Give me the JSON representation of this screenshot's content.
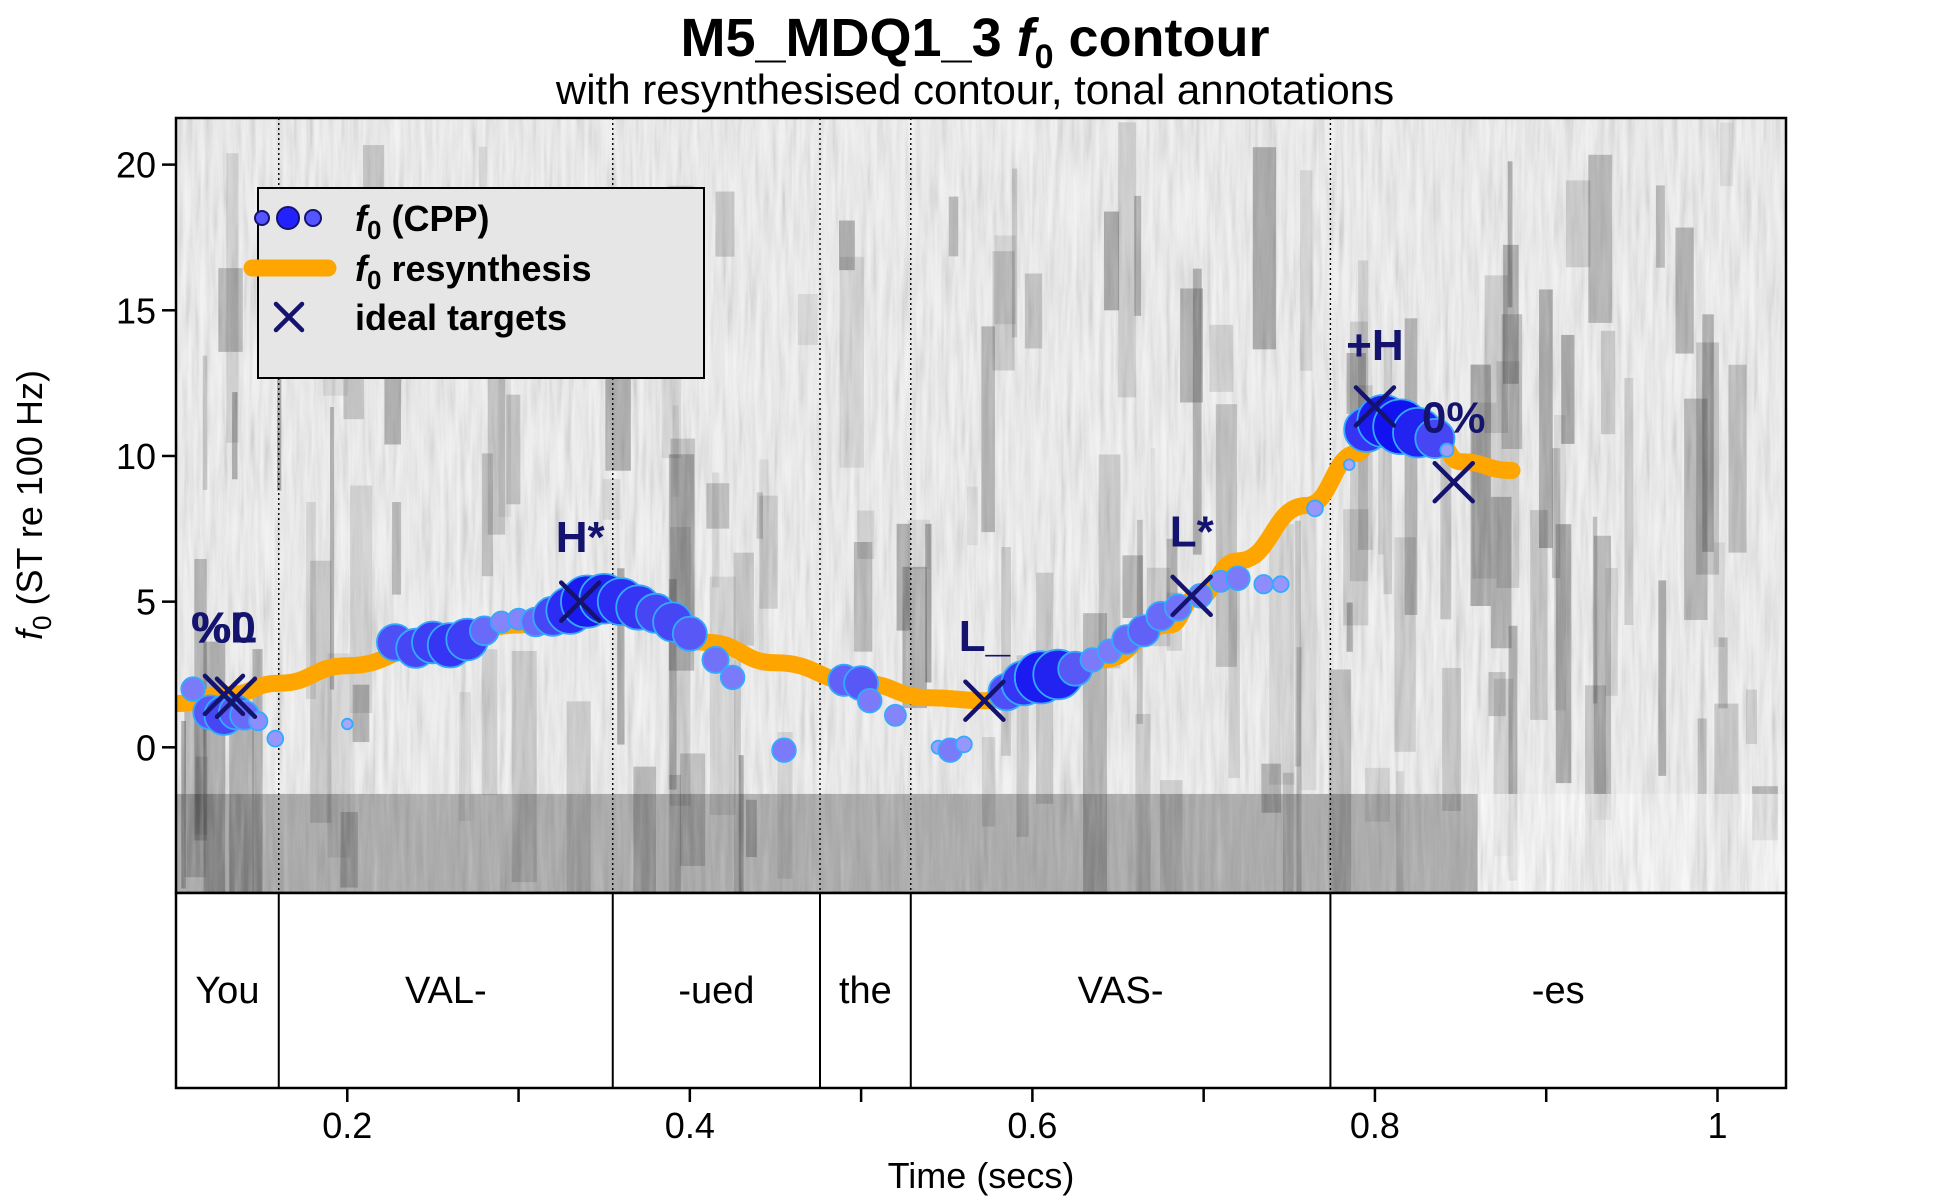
{
  "chart_data": {
    "type": "scatter",
    "title_main": "M5_MDQ1_3 ",
    "title_f": "f",
    "title_sub0": "0",
    "title_rest": " contour",
    "subtitle": "with resynthesised contour, tonal annotations",
    "xlabel": "Time (secs)",
    "ylabel_f": "f",
    "ylabel_sub": "0",
    "ylabel_rest": " (ST re 100 Hz)",
    "xlim": [
      0.1,
      1.04
    ],
    "ylim": [
      -5,
      21.6
    ],
    "xticks": [
      {
        "value": 0.2,
        "label": "0.2"
      },
      {
        "value": 0.3,
        "label": ""
      },
      {
        "value": 0.4,
        "label": "0.4"
      },
      {
        "value": 0.5,
        "label": ""
      },
      {
        "value": 0.6,
        "label": "0.6"
      },
      {
        "value": 0.7,
        "label": ""
      },
      {
        "value": 0.8,
        "label": "0.8"
      },
      {
        "value": 0.9,
        "label": ""
      },
      {
        "value": 1.0,
        "label": "1"
      }
    ],
    "yticks": [
      {
        "value": 0,
        "label": "0"
      },
      {
        "value": 5,
        "label": "5"
      },
      {
        "value": 10,
        "label": "10"
      },
      {
        "value": 15,
        "label": "15"
      },
      {
        "value": 20,
        "label": "20"
      }
    ],
    "legend": {
      "position": "top-left",
      "items": [
        {
          "kind": "points",
          "prefix": "f",
          "sub": "0",
          "suffix": " (CPP)"
        },
        {
          "kind": "line",
          "prefix": "f",
          "sub": "0",
          "suffix": " resynthesis"
        },
        {
          "kind": "cross",
          "prefix": "",
          "sub": "",
          "suffix": "ideal targets"
        }
      ]
    },
    "word_boundaries": [
      0.16,
      0.355,
      0.476,
      0.529,
      0.774
    ],
    "words": [
      {
        "label": "You",
        "start": 0.1,
        "end": 0.16
      },
      {
        "label": "VAL-",
        "start": 0.16,
        "end": 0.355
      },
      {
        "label": "-ued",
        "start": 0.355,
        "end": 0.476
      },
      {
        "label": "the",
        "start": 0.476,
        "end": 0.529
      },
      {
        "label": "VAS-",
        "start": 0.529,
        "end": 0.774
      },
      {
        "label": "-es",
        "start": 0.774,
        "end": 1.04
      }
    ],
    "resynthesis": [
      [
        0.1,
        1.5
      ],
      [
        0.13,
        1.8
      ],
      [
        0.16,
        2.2
      ],
      [
        0.2,
        2.8
      ],
      [
        0.25,
        3.5
      ],
      [
        0.3,
        4.2
      ],
      [
        0.337,
        4.9
      ],
      [
        0.37,
        4.4
      ],
      [
        0.41,
        3.6
      ],
      [
        0.45,
        2.9
      ],
      [
        0.5,
        2.2
      ],
      [
        0.54,
        1.7
      ],
      [
        0.572,
        1.6
      ],
      [
        0.6,
        2.1
      ],
      [
        0.64,
        3.0
      ],
      [
        0.68,
        4.2
      ],
      [
        0.695,
        5.1
      ],
      [
        0.72,
        6.4
      ],
      [
        0.76,
        8.3
      ],
      [
        0.79,
        10.1
      ],
      [
        0.8,
        11.0
      ],
      [
        0.82,
        11.3
      ],
      [
        0.835,
        10.6
      ],
      [
        0.85,
        9.8
      ],
      [
        0.88,
        9.5
      ]
    ],
    "cpp_points": [
      {
        "x": 0.11,
        "y": 2.0,
        "cpp": 0.3
      },
      {
        "x": 0.12,
        "y": 1.2,
        "cpp": 0.5
      },
      {
        "x": 0.128,
        "y": 1.1,
        "cpp": 0.6
      },
      {
        "x": 0.135,
        "y": 1.2,
        "cpp": 0.5
      },
      {
        "x": 0.14,
        "y": 1.1,
        "cpp": 0.4
      },
      {
        "x": 0.148,
        "y": 0.9,
        "cpp": 0.2
      },
      {
        "x": 0.158,
        "y": 0.3,
        "cpp": 0.15
      },
      {
        "x": 0.2,
        "y": 0.8,
        "cpp": 0.05
      },
      {
        "x": 0.228,
        "y": 3.6,
        "cpp": 0.55
      },
      {
        "x": 0.24,
        "y": 3.4,
        "cpp": 0.6
      },
      {
        "x": 0.25,
        "y": 3.6,
        "cpp": 0.65
      },
      {
        "x": 0.26,
        "y": 3.5,
        "cpp": 0.7
      },
      {
        "x": 0.27,
        "y": 3.7,
        "cpp": 0.65
      },
      {
        "x": 0.28,
        "y": 4.0,
        "cpp": 0.4
      },
      {
        "x": 0.29,
        "y": 4.3,
        "cpp": 0.25
      },
      {
        "x": 0.3,
        "y": 4.4,
        "cpp": 0.25
      },
      {
        "x": 0.31,
        "y": 4.3,
        "cpp": 0.4
      },
      {
        "x": 0.32,
        "y": 4.5,
        "cpp": 0.6
      },
      {
        "x": 0.33,
        "y": 4.7,
        "cpp": 0.75
      },
      {
        "x": 0.34,
        "y": 5.0,
        "cpp": 0.85
      },
      {
        "x": 0.35,
        "y": 5.1,
        "cpp": 0.8
      },
      {
        "x": 0.36,
        "y": 5.0,
        "cpp": 0.75
      },
      {
        "x": 0.37,
        "y": 4.8,
        "cpp": 0.7
      },
      {
        "x": 0.38,
        "y": 4.6,
        "cpp": 0.6
      },
      {
        "x": 0.39,
        "y": 4.3,
        "cpp": 0.6
      },
      {
        "x": 0.4,
        "y": 3.9,
        "cpp": 0.5
      },
      {
        "x": 0.415,
        "y": 3.0,
        "cpp": 0.35
      },
      {
        "x": 0.425,
        "y": 2.4,
        "cpp": 0.3
      },
      {
        "x": 0.455,
        "y": -0.1,
        "cpp": 0.3
      },
      {
        "x": 0.49,
        "y": 2.3,
        "cpp": 0.45
      },
      {
        "x": 0.5,
        "y": 2.2,
        "cpp": 0.5
      },
      {
        "x": 0.505,
        "y": 1.6,
        "cpp": 0.3
      },
      {
        "x": 0.52,
        "y": 1.1,
        "cpp": 0.25
      },
      {
        "x": 0.545,
        "y": 0.0,
        "cpp": 0.1
      },
      {
        "x": 0.552,
        "y": -0.1,
        "cpp": 0.3
      },
      {
        "x": 0.56,
        "y": 0.1,
        "cpp": 0.15
      },
      {
        "x": 0.585,
        "y": 1.9,
        "cpp": 0.55
      },
      {
        "x": 0.595,
        "y": 2.2,
        "cpp": 0.7
      },
      {
        "x": 0.605,
        "y": 2.4,
        "cpp": 0.85
      },
      {
        "x": 0.615,
        "y": 2.5,
        "cpp": 0.8
      },
      {
        "x": 0.625,
        "y": 2.7,
        "cpp": 0.5
      },
      {
        "x": 0.635,
        "y": 3.0,
        "cpp": 0.3
      },
      {
        "x": 0.645,
        "y": 3.3,
        "cpp": 0.3
      },
      {
        "x": 0.655,
        "y": 3.7,
        "cpp": 0.4
      },
      {
        "x": 0.665,
        "y": 4.0,
        "cpp": 0.45
      },
      {
        "x": 0.675,
        "y": 4.5,
        "cpp": 0.4
      },
      {
        "x": 0.685,
        "y": 4.8,
        "cpp": 0.35
      },
      {
        "x": 0.698,
        "y": 5.2,
        "cpp": 0.3
      },
      {
        "x": 0.71,
        "y": 5.7,
        "cpp": 0.25
      },
      {
        "x": 0.72,
        "y": 5.8,
        "cpp": 0.3
      },
      {
        "x": 0.735,
        "y": 5.6,
        "cpp": 0.2
      },
      {
        "x": 0.745,
        "y": 5.6,
        "cpp": 0.15
      },
      {
        "x": 0.765,
        "y": 8.2,
        "cpp": 0.15
      },
      {
        "x": 0.785,
        "y": 9.7,
        "cpp": 0.05
      },
      {
        "x": 0.795,
        "y": 10.9,
        "cpp": 0.7
      },
      {
        "x": 0.805,
        "y": 11.2,
        "cpp": 0.85
      },
      {
        "x": 0.815,
        "y": 11.0,
        "cpp": 0.9
      },
      {
        "x": 0.825,
        "y": 10.8,
        "cpp": 0.8
      },
      {
        "x": 0.835,
        "y": 10.6,
        "cpp": 0.6
      },
      {
        "x": 0.842,
        "y": 10.2,
        "cpp": 0.1
      }
    ],
    "ideal_targets": [
      {
        "x": 0.128,
        "y": 1.8,
        "label": "%L"
      },
      {
        "x": 0.135,
        "y": 1.7,
        "label": ""
      },
      {
        "x": 0.336,
        "y": 5.0,
        "label": "H*"
      },
      {
        "x": 0.572,
        "y": 1.6,
        "label": "L_"
      },
      {
        "x": 0.693,
        "y": 5.2,
        "label": "L*"
      },
      {
        "x": 0.8,
        "y": 11.7,
        "label": "+H"
      },
      {
        "x": 0.846,
        "y": 9.1,
        "label": "0%"
      }
    ],
    "tone_labels": [
      {
        "text": "%L",
        "x": 0.128,
        "y": 3.6
      },
      {
        "text": "%0",
        "x": 0.128,
        "y": 3.6
      },
      {
        "text": "H*",
        "x": 0.336,
        "y": 6.7
      },
      {
        "text": "L_",
        "x": 0.572,
        "y": 3.3
      },
      {
        "text": "L*",
        "x": 0.693,
        "y": 6.9
      },
      {
        "text": "+H",
        "x": 0.8,
        "y": 13.3
      },
      {
        "text": "0%",
        "x": 0.846,
        "y": 10.8
      }
    ],
    "colors": {
      "resynthesis": "#ffa500",
      "point_fill_dark": "#0000ee",
      "point_fill_light": "#b0b0ff",
      "point_outline": "#33aaff",
      "target_cross": "#14146e",
      "legend_bg": "#e6e6e6",
      "spectrogram_dark": "#1a1a1a"
    }
  }
}
